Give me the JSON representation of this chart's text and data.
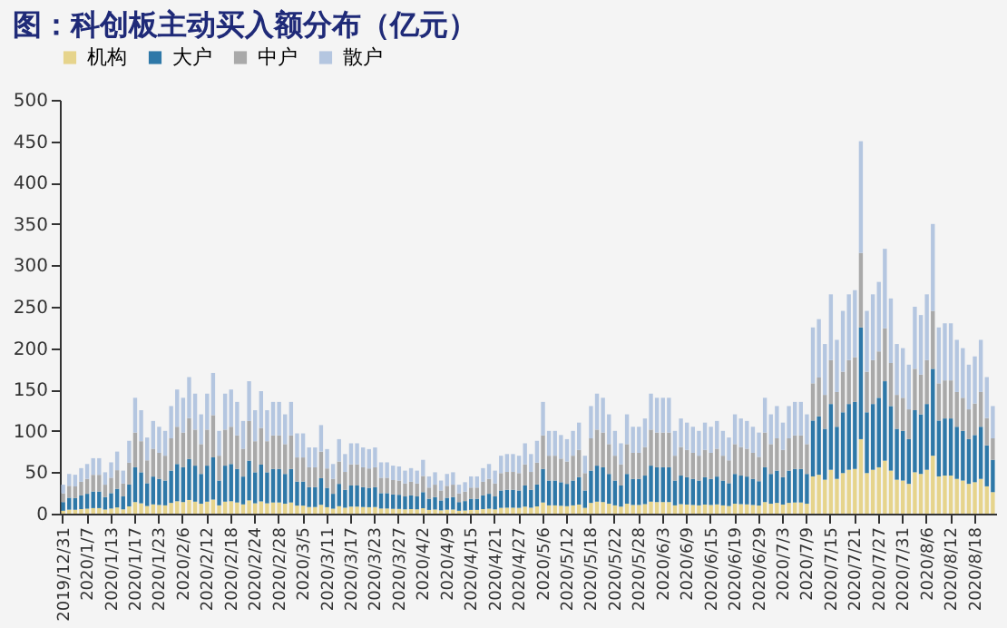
{
  "chart_data": {
    "type": "bar",
    "title": "图：科创板主动买入额分布（亿元）",
    "stacked": true,
    "legend": "top",
    "ylim": [
      0,
      500
    ],
    "yticks": [
      0,
      50,
      100,
      150,
      200,
      250,
      300,
      350,
      400,
      450,
      500
    ],
    "categories": [
      "2019/12/31",
      null,
      null,
      null,
      "2020/1/7",
      null,
      null,
      null,
      "2020/1/13",
      null,
      null,
      null,
      "2020/1/17",
      null,
      null,
      null,
      "2020/1/23",
      null,
      null,
      null,
      "2020/2/6",
      null,
      null,
      null,
      "2020/2/12",
      null,
      null,
      null,
      "2020/2/18",
      null,
      null,
      null,
      "2020/2/24",
      null,
      null,
      null,
      "2020/2/28",
      null,
      null,
      null,
      "2020/3/5",
      null,
      null,
      null,
      "2020/3/11",
      null,
      null,
      null,
      "2020/3/17",
      null,
      null,
      null,
      "2020/3/23",
      null,
      null,
      null,
      "2020/3/27",
      null,
      null,
      null,
      "2020/4/2",
      null,
      null,
      null,
      "2020/4/9",
      null,
      null,
      null,
      "2020/4/15",
      null,
      null,
      null,
      "2020/4/21",
      null,
      null,
      null,
      "2020/4/27",
      null,
      null,
      null,
      "2020/5/6",
      null,
      null,
      null,
      "2020/5/12",
      null,
      null,
      null,
      "2020/5/18",
      null,
      null,
      null,
      "2020/5/22",
      null,
      null,
      null,
      "2020/5/28",
      null,
      null,
      null,
      "2020/6/3",
      null,
      null,
      null,
      "2020/6/9",
      null,
      null,
      null,
      "2020/6/15",
      null,
      null,
      null,
      "2020/6/19",
      null,
      null,
      null,
      "2020/6/29",
      null,
      null,
      null,
      "2020/7/3",
      null,
      null,
      null,
      "2020/7/9",
      null,
      null,
      null,
      "2020/7/15",
      null,
      null,
      null,
      "2020/7/21",
      null,
      null,
      null,
      "2020/7/27",
      null,
      null,
      null,
      "2020/7/31",
      null,
      null,
      null,
      "2020/8/6",
      null,
      null,
      null,
      "2020/8/12",
      null,
      null,
      null,
      "2020/8/18",
      null,
      null,
      null
    ],
    "series": [
      {
        "name": "机构",
        "color": "#e6d48c",
        "values": [
          3.5,
          4.8,
          4.7,
          5.5,
          6,
          6.7,
          6.7,
          5,
          6.2,
          7.5,
          5.2,
          8.8,
          14,
          12.5,
          9.2,
          11.2,
          10.5,
          10,
          13,
          15,
          14,
          16.5,
          14.5,
          12,
          14.5,
          17,
          10,
          14.5,
          15,
          13.5,
          11.2,
          16,
          12.5,
          14.8,
          12.5,
          13.5,
          13.5,
          12,
          13.5,
          9.7,
          9.7,
          8,
          8,
          10.7,
          7.8,
          6,
          9,
          7.2,
          8.5,
          8.5,
          8,
          7.8,
          8,
          6.2,
          6.2,
          5.8,
          5.7,
          5.2,
          5.5,
          5.2,
          6.5,
          4.5,
          5,
          4,
          4.8,
          5,
          3.5,
          3.8,
          4.5,
          4.5,
          5.5,
          6,
          5.2,
          7,
          7.2,
          7.2,
          7,
          8.5,
          7.2,
          8.8,
          13.5,
          10,
          10,
          9.5,
          9,
          10,
          11,
          7,
          13,
          14.5,
          14,
          12,
          10,
          8.5,
          12,
          10.5,
          10.5,
          11.5,
          14.5,
          14,
          14,
          14,
          10,
          11.5,
          11,
          10.5,
          10,
          11,
          10.5,
          11.2,
          10,
          9.2,
          12,
          11.5,
          11.2,
          10.5,
          9.8,
          14,
          12,
          13,
          11,
          13,
          13.5,
          13.5,
          12,
          45,
          47,
          41,
          53,
          42,
          49,
          53,
          54,
          90,
          49,
          53,
          56,
          64,
          52,
          41,
          40,
          36,
          50,
          48,
          53,
          70,
          45,
          46,
          46,
          42,
          40,
          36,
          38,
          42,
          33,
          26
        ]
      },
      {
        "name": "大户",
        "color": "#2e78a8",
        "values": [
          10.5,
          14.4,
          14.1,
          16.5,
          18,
          20.1,
          20.1,
          15,
          18.6,
          22.5,
          15.6,
          26.4,
          42,
          37.5,
          27.6,
          33.6,
          31.5,
          30,
          39,
          45,
          42,
          49.5,
          43.5,
          36,
          43.5,
          51,
          30,
          43.5,
          45,
          40.5,
          33.6,
          48,
          37.5,
          44.4,
          37.5,
          40.5,
          40.5,
          36,
          40.5,
          29.1,
          29.1,
          24,
          24,
          32.1,
          23.4,
          18,
          27,
          21.6,
          25.5,
          25.5,
          24,
          23.4,
          24,
          18.6,
          18.6,
          17.4,
          17.1,
          15.6,
          16.5,
          15.6,
          19.5,
          13.5,
          15,
          12,
          14.4,
          15,
          10.5,
          11.4,
          13.5,
          13.5,
          16.5,
          18,
          15.6,
          21,
          21.6,
          21.6,
          21,
          25.5,
          21.6,
          26.4,
          40.5,
          30,
          30,
          28.5,
          27,
          30,
          33,
          21,
          39,
          43.5,
          42,
          36,
          30,
          25.5,
          36,
          31.5,
          31.5,
          34.5,
          43.5,
          42,
          42,
          42,
          30,
          34.5,
          33,
          31.5,
          30,
          33,
          31.5,
          33.6,
          30,
          27.6,
          36,
          34.5,
          33.6,
          31.5,
          29.4,
          42,
          36,
          39,
          33,
          39,
          40.5,
          40.5,
          36,
          67.5,
          70.5,
          61.5,
          79.5,
          63,
          73.5,
          79.5,
          81,
          135,
          73.5,
          79.5,
          84,
          96,
          78,
          61.5,
          60,
          54,
          75,
          72,
          79.5,
          105,
          67.5,
          69,
          69,
          63,
          60,
          54,
          57,
          63,
          49.5,
          39
        ]
      },
      {
        "name": "中户",
        "color": "#a9a9a9",
        "values": [
          10.5,
          14.4,
          14.1,
          16.5,
          18,
          20.1,
          20.1,
          15,
          18.6,
          22.5,
          15.6,
          26.4,
          42,
          37.5,
          27.6,
          33.6,
          31.5,
          30,
          39,
          45,
          42,
          49.5,
          43.5,
          36,
          43.5,
          51,
          30,
          43.5,
          45,
          40.5,
          33.6,
          48,
          37.5,
          44.4,
          37.5,
          40.5,
          40.5,
          36,
          40.5,
          29.1,
          29.1,
          24,
          24,
          32.1,
          23.4,
          18,
          27,
          21.6,
          25.5,
          25.5,
          24,
          23.4,
          24,
          18.6,
          18.6,
          17.4,
          17.1,
          15.6,
          16.5,
          15.6,
          19.5,
          13.5,
          15,
          12,
          14.4,
          15,
          10.5,
          11.4,
          13.5,
          13.5,
          16.5,
          18,
          15.6,
          21,
          21.6,
          21.6,
          21,
          25.5,
          21.6,
          26.4,
          40.5,
          30,
          30,
          28.5,
          27,
          30,
          33,
          21,
          39,
          43.5,
          42,
          36,
          30,
          25.5,
          36,
          31.5,
          31.5,
          34.5,
          43.5,
          42,
          42,
          42,
          30,
          34.5,
          33,
          31.5,
          30,
          33,
          31.5,
          33.6,
          30,
          27.6,
          36,
          34.5,
          33.6,
          31.5,
          29.4,
          42,
          36,
          39,
          33,
          39,
          40.5,
          40.5,
          36,
          45,
          47,
          41,
          53,
          42,
          49,
          53,
          54,
          90,
          49,
          53,
          56,
          64,
          52,
          41,
          40,
          36,
          50,
          48,
          53,
          70,
          45,
          46,
          46,
          42,
          40,
          36,
          38,
          42,
          33,
          26
        ]
      },
      {
        "name": "散户",
        "color": "#b4c6e0",
        "values": [
          10.5,
          14.4,
          14.1,
          16.5,
          18,
          20.1,
          20.1,
          15,
          18.6,
          22.5,
          15.6,
          26.4,
          42,
          37.5,
          27.6,
          33.6,
          31.5,
          30,
          39,
          45,
          42,
          49.5,
          43.5,
          36,
          43.5,
          51,
          30,
          43.5,
          45,
          40.5,
          33.6,
          48,
          37.5,
          44.4,
          37.5,
          40.5,
          40.5,
          36,
          40.5,
          29.1,
          29.1,
          24,
          24,
          32.1,
          23.4,
          18,
          27,
          21.6,
          25.5,
          25.5,
          24,
          23.4,
          24,
          18.6,
          18.6,
          17.4,
          17.1,
          15.6,
          16.5,
          15.6,
          19.5,
          13.5,
          15,
          12,
          14.4,
          15,
          10.5,
          11.4,
          13.5,
          13.5,
          16.5,
          18,
          15.6,
          21,
          21.6,
          21.6,
          21,
          25.5,
          21.6,
          26.4,
          40.5,
          30,
          30,
          28.5,
          27,
          30,
          33,
          21,
          39,
          43.5,
          42,
          36,
          30,
          25.5,
          36,
          31.5,
          31.5,
          34.5,
          43.5,
          42,
          42,
          42,
          30,
          34.5,
          33,
          31.5,
          30,
          33,
          31.5,
          33.6,
          30,
          27.6,
          36,
          34.5,
          33.6,
          31.5,
          29.4,
          42,
          36,
          39,
          33,
          39,
          40.5,
          40.5,
          36,
          67.5,
          70.5,
          61.5,
          79.5,
          63,
          73.5,
          79.5,
          81,
          135,
          73.5,
          79.5,
          84,
          96,
          78,
          61.5,
          60,
          54,
          75,
          72,
          79.5,
          105,
          67.5,
          69,
          69,
          63,
          60,
          54,
          57,
          63,
          49.5,
          39
        ]
      }
    ]
  }
}
